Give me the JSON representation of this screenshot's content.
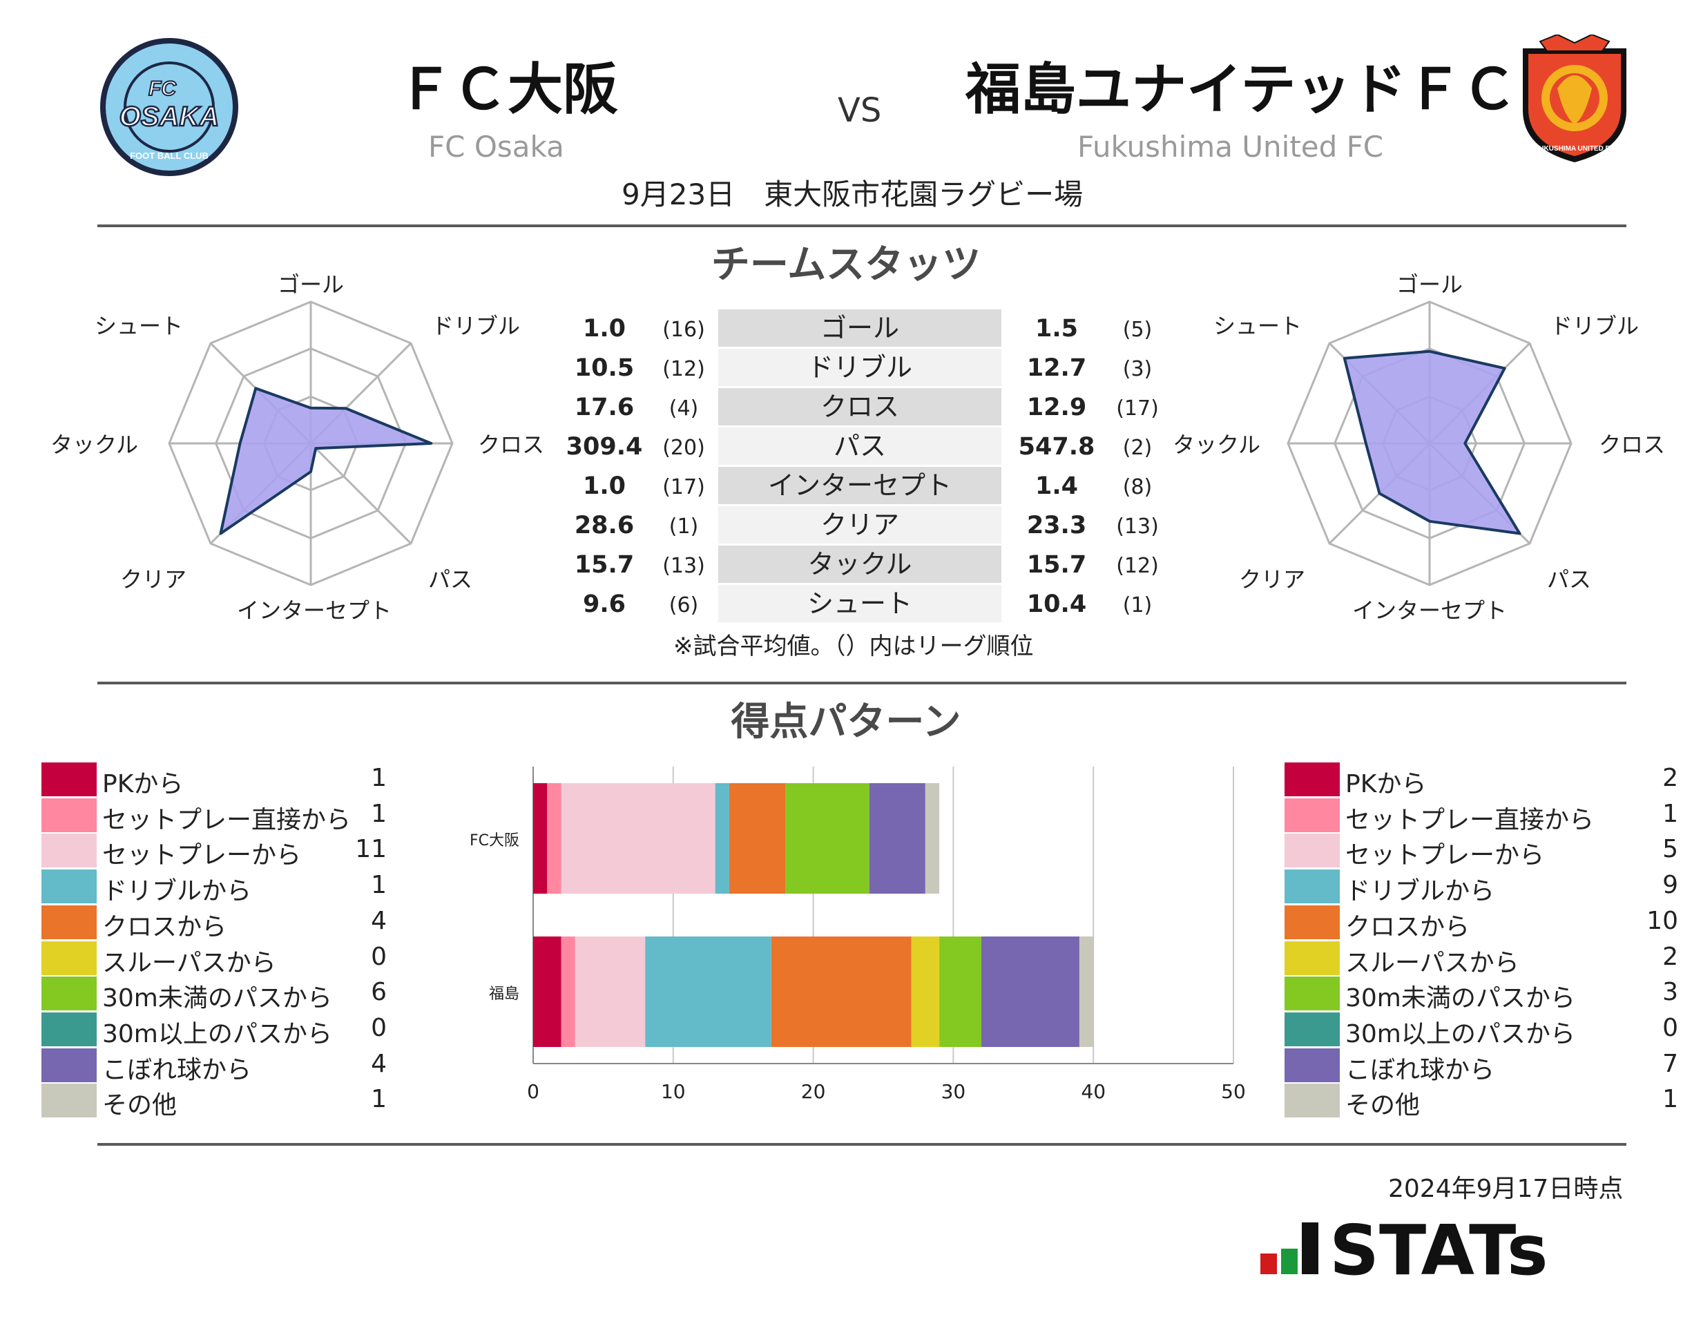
{
  "header": {
    "home_name": "ＦＣ大阪",
    "home_sub": "FC Osaka",
    "away_name": "福島ユナイテッドＦＣ",
    "away_sub": "Fukushima United FC",
    "vs": "VS",
    "match_info": "9月23日　東大阪市花園ラグビー場",
    "home_logo": {
      "top": "FC",
      "main": "OSAKA",
      "ring": "FOOT BALL CLUB"
    },
    "away_logo": {
      "ring": "FUKUSHIMA UNITED FC"
    }
  },
  "team_stats": {
    "title": "チームスタッツ",
    "note": "※試合平均値。（）内はリーグ順位",
    "rows": [
      {
        "label": "ゴール",
        "home": "1.0",
        "home_rank": "(16)",
        "away": "1.5",
        "away_rank": "(5)"
      },
      {
        "label": "ドリブル",
        "home": "10.5",
        "home_rank": "(12)",
        "away": "12.7",
        "away_rank": "(3)"
      },
      {
        "label": "クロス",
        "home": "17.6",
        "home_rank": "(4)",
        "away": "12.9",
        "away_rank": "(17)"
      },
      {
        "label": "パス",
        "home": "309.4",
        "home_rank": "(20)",
        "away": "547.8",
        "away_rank": "(2)"
      },
      {
        "label": "インターセプト",
        "home": "1.0",
        "home_rank": "(17)",
        "away": "1.4",
        "away_rank": "(8)"
      },
      {
        "label": "クリア",
        "home": "28.6",
        "home_rank": "(1)",
        "away": "23.3",
        "away_rank": "(13)"
      },
      {
        "label": "タックル",
        "home": "15.7",
        "home_rank": "(13)",
        "away": "15.7",
        "away_rank": "(12)"
      },
      {
        "label": "シュート",
        "home": "9.6",
        "home_rank": "(6)",
        "away": "10.4",
        "away_rank": "(1)"
      }
    ]
  },
  "scoring": {
    "title": "得点パターン",
    "categories": [
      "PKから",
      "セットプレー直接から",
      "セットプレーから",
      "ドリブルから",
      "クロスから",
      "スルーパスから",
      "30m未満のパスから",
      "30m以上のパスから",
      "こぼれ球から",
      "その他"
    ],
    "colors": [
      "#c4003f",
      "#ff87a0",
      "#f4cad7",
      "#63bac8",
      "#ea742a",
      "#e1d125",
      "#84c822",
      "#3a9a90",
      "#7767b0",
      "#c8c9bb"
    ],
    "home_values": [
      1,
      1,
      11,
      1,
      4,
      0,
      6,
      0,
      4,
      1
    ],
    "away_values": [
      2,
      1,
      5,
      9,
      10,
      2,
      3,
      0,
      7,
      1
    ],
    "home_values_text": [
      "1",
      "1",
      "11",
      "1",
      "4",
      "0",
      "6",
      "0",
      "4",
      "1"
    ],
    "away_values_text": [
      "2",
      "1",
      "5",
      "9",
      "10",
      "2",
      "3",
      "0",
      "7",
      "1"
    ]
  },
  "chart_data": [
    {
      "type": "radar",
      "title": "",
      "series": [
        {
          "name": "FC Osaka",
          "values": [
            0.25,
            0.35,
            0.85,
            0.05,
            0.2,
            0.9,
            0.5,
            0.55
          ]
        }
      ],
      "axes": [
        "ゴール",
        "ドリブル",
        "クロス",
        "パス",
        "インターセプト",
        "クリア",
        "タックル",
        "シュート"
      ],
      "grid_levels": [
        0.33,
        0.67,
        1.0
      ],
      "color": "#aba2ee",
      "stroke": "#1a3a62"
    },
    {
      "type": "radar",
      "title": "",
      "series": [
        {
          "name": "Fukushima United FC",
          "values": [
            0.65,
            0.75,
            0.25,
            0.9,
            0.55,
            0.5,
            0.45,
            0.85
          ]
        }
      ],
      "axes": [
        "ゴール",
        "ドリブル",
        "クロス",
        "パス",
        "インターセプト",
        "クリア",
        "タックル",
        "シュート"
      ],
      "grid_levels": [
        0.33,
        0.67,
        1.0
      ],
      "color": "#aba2ee",
      "stroke": "#1a3a62"
    },
    {
      "type": "bar",
      "orientation": "horizontal",
      "stacked": true,
      "categories": [
        "FC大阪",
        "福島"
      ],
      "series_names": [
        "PKから",
        "セットプレー直接から",
        "セットプレーから",
        "ドリブルから",
        "クロスから",
        "スルーパスから",
        "30m未満のパスから",
        "30m以上のパスから",
        "こぼれ球から",
        "その他"
      ],
      "xlim": [
        0,
        50
      ],
      "xticks": [
        "0",
        "10",
        "20",
        "30",
        "40",
        "50"
      ],
      "grid": true
    }
  ],
  "footer": {
    "timestamp": "2024年9月17日時点",
    "brand": "STATs"
  }
}
